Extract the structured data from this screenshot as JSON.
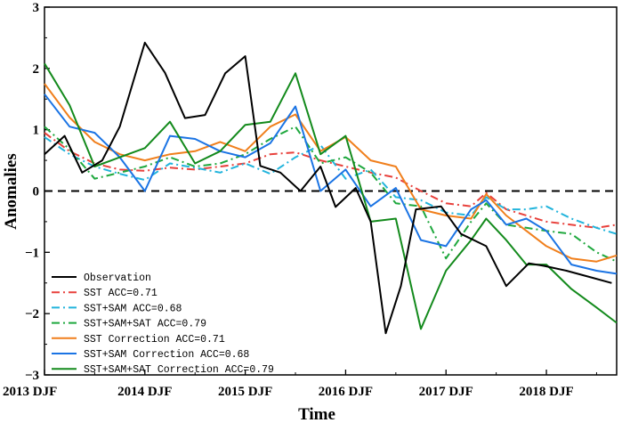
{
  "chart_data": {
    "type": "line",
    "title": "",
    "xlabel": "Time",
    "ylabel": "Anomalies",
    "ylim": [
      -3,
      3
    ],
    "xlim": [
      0,
      22.8
    ],
    "x_ticks": [
      {
        "x": 0,
        "label": "2013 DJF"
      },
      {
        "x": 4,
        "label": "2014 DJF"
      },
      {
        "x": 8,
        "label": "2015 DJF"
      },
      {
        "x": 12,
        "label": "2016 DJF"
      },
      {
        "x": 16,
        "label": "2017 DJF"
      },
      {
        "x": 20,
        "label": "2018 DJF"
      }
    ],
    "y_ticks": [
      -3,
      -2,
      -1,
      0,
      1,
      2,
      3
    ],
    "zero_line": true,
    "legend_position": "bottom-left",
    "series": [
      {
        "name": "Observation",
        "color": "#000000",
        "dash": "solid",
        "x": [
          0,
          0.8,
          1.5,
          2.3,
          3.0,
          4.0,
          4.8,
          5.6,
          6.4,
          7.2,
          8.0,
          8.6,
          9.4,
          10.2,
          11.0,
          11.6,
          12.4,
          13.0,
          13.6,
          14.2,
          14.8,
          15.8,
          16.6,
          17.6,
          18.4,
          19.3,
          19.9,
          20.8,
          21.7,
          22.6
        ],
        "values": [
          0.6,
          0.9,
          0.3,
          0.5,
          1.05,
          2.42,
          1.93,
          1.19,
          1.24,
          1.92,
          2.2,
          0.41,
          0.3,
          0.0,
          0.4,
          -0.26,
          0.05,
          -0.5,
          -2.32,
          -1.55,
          -0.3,
          -0.25,
          -0.7,
          -0.9,
          -1.55,
          -1.18,
          -1.22,
          -1.3,
          -1.4,
          -1.5
        ]
      },
      {
        "name": "SST ACC=0.71",
        "color": "#e8413c",
        "dash": "dashdot",
        "x": [
          0,
          1.0,
          2.0,
          3.0,
          4.0,
          5.0,
          6.0,
          7.0,
          8.0,
          9.0,
          10.0,
          11.0,
          12.0,
          13.0,
          14.0,
          15.0,
          16.0,
          17.0,
          17.6,
          18.4,
          19.2,
          20.0,
          21.0,
          22.0,
          22.8
        ],
        "values": [
          0.95,
          0.65,
          0.45,
          0.35,
          0.33,
          0.38,
          0.35,
          0.4,
          0.45,
          0.6,
          0.63,
          0.5,
          0.4,
          0.3,
          0.22,
          0.0,
          -0.2,
          -0.25,
          -0.03,
          -0.3,
          -0.4,
          -0.5,
          -0.55,
          -0.6,
          -0.55
        ]
      },
      {
        "name": "SST+SAM ACC=0.68",
        "color": "#22b4dc",
        "dash": "dashdot",
        "x": [
          0,
          1.0,
          2.0,
          3.0,
          4.0,
          5.0,
          6.0,
          7.0,
          8.0,
          9.0,
          10.0,
          11.0,
          12.0,
          13.0,
          14.0,
          15.0,
          16.0,
          17.0,
          17.6,
          18.4,
          19.2,
          20.0,
          21.0,
          22.0,
          22.8
        ],
        "values": [
          0.88,
          0.6,
          0.4,
          0.28,
          0.18,
          0.45,
          0.38,
          0.3,
          0.45,
          0.28,
          0.55,
          0.75,
          0.2,
          0.35,
          -0.1,
          -0.15,
          -0.35,
          -0.4,
          -0.1,
          -0.3,
          -0.3,
          -0.25,
          -0.45,
          -0.6,
          -0.7
        ]
      },
      {
        "name": "SST+SAM+SAT ACC=0.79",
        "color": "#1fa83e",
        "dash": "dashdot",
        "x": [
          0,
          1.0,
          2.0,
          3.0,
          4.0,
          5.0,
          6.0,
          7.0,
          8.0,
          9.0,
          10.0,
          11.0,
          12.0,
          13.0,
          14.0,
          15.0,
          16.0,
          17.0,
          17.6,
          18.4,
          19.2,
          20.0,
          21.0,
          22.0,
          22.8
        ],
        "values": [
          1.05,
          0.68,
          0.2,
          0.3,
          0.4,
          0.55,
          0.4,
          0.45,
          0.6,
          0.85,
          1.05,
          0.45,
          0.55,
          0.3,
          -0.2,
          -0.25,
          -1.1,
          -0.5,
          -0.2,
          -0.55,
          -0.6,
          -0.65,
          -0.7,
          -1.0,
          -1.15
        ]
      },
      {
        "name": "SST Correction ACC=0.71",
        "color": "#f07f1c",
        "dash": "solid",
        "x": [
          0,
          1.0,
          2.0,
          3.0,
          4.0,
          5.0,
          6.0,
          7.0,
          8.0,
          9.0,
          10.0,
          11.0,
          12.0,
          13.0,
          14.0,
          15.0,
          16.0,
          17.0,
          17.6,
          18.4,
          19.2,
          20.0,
          21.0,
          22.0,
          22.8
        ],
        "values": [
          1.75,
          1.2,
          0.8,
          0.6,
          0.5,
          0.6,
          0.65,
          0.8,
          0.65,
          1.05,
          1.25,
          0.65,
          0.88,
          0.5,
          0.4,
          -0.3,
          -0.4,
          -0.45,
          -0.05,
          -0.4,
          -0.65,
          -0.9,
          -1.1,
          -1.15,
          -1.05
        ]
      },
      {
        "name": "SST+SAM Correction ACC=0.68",
        "color": "#1b74e4",
        "dash": "solid",
        "x": [
          0,
          1.0,
          2.0,
          3.0,
          4.0,
          5.0,
          6.0,
          7.0,
          8.0,
          9.0,
          10.0,
          11.0,
          12.0,
          13.0,
          14.0,
          15.0,
          16.0,
          17.0,
          17.6,
          18.4,
          19.2,
          20.0,
          21.0,
          22.0,
          22.8
        ],
        "values": [
          1.58,
          1.05,
          0.95,
          0.55,
          0.0,
          0.9,
          0.85,
          0.65,
          0.55,
          0.78,
          1.38,
          0.0,
          0.35,
          -0.25,
          0.05,
          -0.8,
          -0.9,
          -0.3,
          -0.15,
          -0.55,
          -0.45,
          -0.65,
          -1.2,
          -1.3,
          -1.35
        ]
      },
      {
        "name": "SST+SAM+SAT Correction ACC=0.79",
        "color": "#138a1c",
        "dash": "solid",
        "x": [
          0,
          1.0,
          2.0,
          3.0,
          4.0,
          5.0,
          6.0,
          7.0,
          8.0,
          9.0,
          10.0,
          11.0,
          12.0,
          13.0,
          14.0,
          15.0,
          16.0,
          17.0,
          17.6,
          18.4,
          19.2,
          20.0,
          21.0,
          22.0,
          22.8
        ],
        "values": [
          2.08,
          1.4,
          0.4,
          0.55,
          0.7,
          1.13,
          0.45,
          0.65,
          1.08,
          1.13,
          1.92,
          0.6,
          0.9,
          -0.5,
          -0.45,
          -2.25,
          -1.3,
          -0.8,
          -0.45,
          -0.8,
          -1.2,
          -1.2,
          -1.6,
          -1.9,
          -2.15
        ]
      }
    ]
  }
}
